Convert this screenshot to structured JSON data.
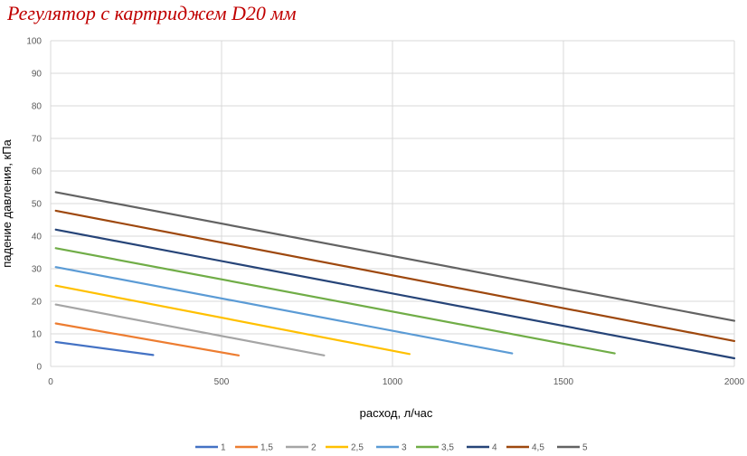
{
  "title": "Регулятор с картриджем D20 мм",
  "chart_data": {
    "type": "line",
    "xlabel": "расход, л/час",
    "ylabel": "падение давления, кПа",
    "xlim": [
      0,
      2000
    ],
    "ylim": [
      0,
      100
    ],
    "x_ticks": [
      "0",
      "500",
      "1000",
      "1500",
      "2000"
    ],
    "y_ticks": [
      "0",
      "10",
      "20",
      "30",
      "40",
      "50",
      "60",
      "70",
      "80",
      "90",
      "100"
    ],
    "grid": true,
    "legend_position": "bottom",
    "series": [
      {
        "name": "1",
        "color": "#4472c4",
        "points": [
          [
            15,
            7.5
          ],
          [
            300,
            3.5
          ]
        ]
      },
      {
        "name": "1,5",
        "color": "#ed7d31",
        "points": [
          [
            15,
            13.2
          ],
          [
            550,
            3.4
          ]
        ]
      },
      {
        "name": "2",
        "color": "#a5a5a5",
        "points": [
          [
            15,
            19
          ],
          [
            800,
            3.4
          ]
        ]
      },
      {
        "name": "2,5",
        "color": "#ffc000",
        "points": [
          [
            15,
            24.8
          ],
          [
            1050,
            3.8
          ]
        ]
      },
      {
        "name": "3",
        "color": "#5b9bd5",
        "points": [
          [
            15,
            30.5
          ],
          [
            1350,
            4
          ]
        ]
      },
      {
        "name": "3,5",
        "color": "#70ad47",
        "points": [
          [
            15,
            36.3
          ],
          [
            1650,
            4
          ]
        ]
      },
      {
        "name": "4",
        "color": "#264478",
        "points": [
          [
            15,
            42
          ],
          [
            2000,
            2.5
          ]
        ]
      },
      {
        "name": "4,5",
        "color": "#9e480e",
        "points": [
          [
            15,
            47.8
          ],
          [
            2000,
            7.8
          ]
        ]
      },
      {
        "name": "5",
        "color": "#636363",
        "points": [
          [
            15,
            53.5
          ],
          [
            2000,
            14
          ]
        ]
      }
    ]
  }
}
